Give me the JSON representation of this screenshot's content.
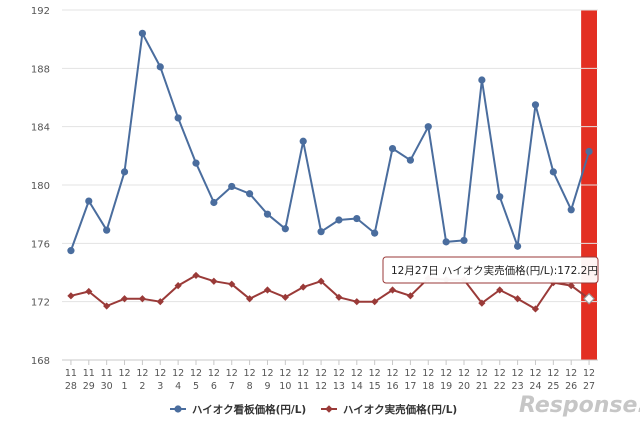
{
  "chart_data": {
    "type": "line",
    "categories": [
      "11/28",
      "11/29",
      "11/30",
      "12/1",
      "12/2",
      "12/3",
      "12/4",
      "12/5",
      "12/6",
      "12/7",
      "12/8",
      "12/9",
      "12/10",
      "12/11",
      "12/12",
      "12/13",
      "12/14",
      "12/15",
      "12/16",
      "12/17",
      "12/18",
      "12/19",
      "12/20",
      "12/21",
      "12/22",
      "12/23",
      "12/24",
      "12/25",
      "12/26",
      "12/27"
    ],
    "tick_labels": [
      [
        "11",
        "28"
      ],
      [
        "11",
        "29"
      ],
      [
        "11",
        "30"
      ],
      [
        "12",
        "1"
      ],
      [
        "12",
        "2"
      ],
      [
        "12",
        "3"
      ],
      [
        "12",
        "4"
      ],
      [
        "12",
        "5"
      ],
      [
        "12",
        "6"
      ],
      [
        "12",
        "7"
      ],
      [
        "12",
        "8"
      ],
      [
        "12",
        "9"
      ],
      [
        "12",
        "10"
      ],
      [
        "12",
        "11"
      ],
      [
        "12",
        "12"
      ],
      [
        "12",
        "13"
      ],
      [
        "12",
        "14"
      ],
      [
        "12",
        "15"
      ],
      [
        "12",
        "16"
      ],
      [
        "12",
        "17"
      ],
      [
        "12",
        "18"
      ],
      [
        "12",
        "19"
      ],
      [
        "12",
        "20"
      ],
      [
        "12",
        "21"
      ],
      [
        "12",
        "22"
      ],
      [
        "12",
        "23"
      ],
      [
        "12",
        "24"
      ],
      [
        "12",
        "25"
      ],
      [
        "12",
        "26"
      ],
      [
        "12",
        "27"
      ]
    ],
    "ylim": [
      168,
      192
    ],
    "yticks": [
      168,
      172,
      176,
      180,
      184,
      188,
      192
    ],
    "grid": true,
    "legend_position": "bottom",
    "series": [
      {
        "name": "ハイオク看板価格(円/L)",
        "color": "#4a6d9e",
        "marker": "circle",
        "values": [
          175.5,
          178.9,
          176.9,
          180.9,
          190.4,
          188.1,
          184.6,
          181.5,
          178.8,
          179.9,
          179.4,
          178.0,
          177.0,
          183.0,
          176.8,
          177.6,
          177.7,
          176.7,
          182.5,
          181.7,
          184.0,
          176.1,
          176.2,
          187.2,
          179.2,
          175.8,
          185.5,
          180.9,
          178.3,
          182.3
        ]
      },
      {
        "name": "ハイオク実売価格(円/L)",
        "color": "#9a3a38",
        "marker": "diamond",
        "values": [
          172.4,
          172.7,
          171.7,
          172.2,
          172.2,
          172.0,
          173.1,
          173.8,
          173.4,
          173.2,
          172.2,
          172.8,
          172.3,
          173.0,
          173.4,
          172.3,
          172.0,
          172.0,
          172.8,
          172.4,
          173.6,
          173.5,
          173.5,
          171.9,
          172.8,
          172.2,
          171.5,
          173.3,
          173.1,
          172.2
        ]
      }
    ],
    "highlight": {
      "index": 29,
      "color": "#e32f22"
    },
    "tooltip": {
      "text": "12月27日 ハイオク実売価格(円/L):172.2円",
      "series_index": 1,
      "point_index": 29
    }
  },
  "watermark": {
    "text": "Response."
  }
}
